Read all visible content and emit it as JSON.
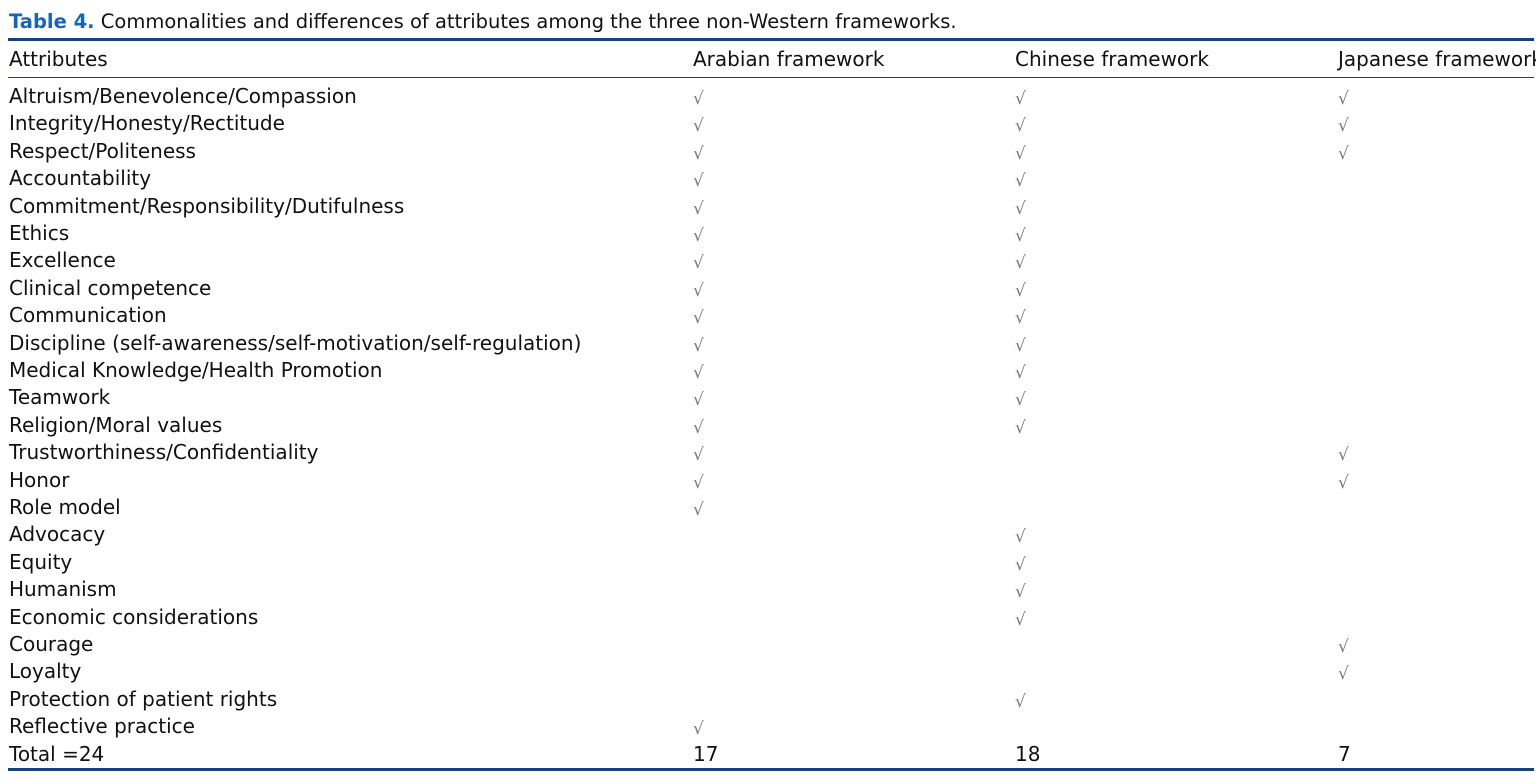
{
  "caption": {
    "label": "Table 4.",
    "text": "Commonalities and differences of attributes among the three non-Western frameworks."
  },
  "check_mark": "√",
  "headers": [
    "Attributes",
    "Arabian framework",
    "Chinese framework",
    "Japanese framework"
  ],
  "rows": [
    {
      "attribute": "Altruism/Benevolence/Compassion",
      "arabian": true,
      "chinese": true,
      "japanese": true
    },
    {
      "attribute": "Integrity/Honesty/Rectitude",
      "arabian": true,
      "chinese": true,
      "japanese": true
    },
    {
      "attribute": "Respect/Politeness",
      "arabian": true,
      "chinese": true,
      "japanese": true
    },
    {
      "attribute": "Accountability",
      "arabian": true,
      "chinese": true,
      "japanese": false
    },
    {
      "attribute": "Commitment/Responsibility/Dutifulness",
      "arabian": true,
      "chinese": true,
      "japanese": false
    },
    {
      "attribute": "Ethics",
      "arabian": true,
      "chinese": true,
      "japanese": false
    },
    {
      "attribute": "Excellence",
      "arabian": true,
      "chinese": true,
      "japanese": false
    },
    {
      "attribute": "Clinical competence",
      "arabian": true,
      "chinese": true,
      "japanese": false
    },
    {
      "attribute": "Communication",
      "arabian": true,
      "chinese": true,
      "japanese": false
    },
    {
      "attribute": "Discipline (self-awareness/self-motivation/self-regulation)",
      "arabian": true,
      "chinese": true,
      "japanese": false
    },
    {
      "attribute": "Medical Knowledge/Health Promotion",
      "arabian": true,
      "chinese": true,
      "japanese": false
    },
    {
      "attribute": "Teamwork",
      "arabian": true,
      "chinese": true,
      "japanese": false
    },
    {
      "attribute": "Religion/Moral values",
      "arabian": true,
      "chinese": true,
      "japanese": false
    },
    {
      "attribute": "Trustworthiness/Confidentiality",
      "arabian": true,
      "chinese": false,
      "japanese": true
    },
    {
      "attribute": "Honor",
      "arabian": true,
      "chinese": false,
      "japanese": true
    },
    {
      "attribute": "Role model",
      "arabian": true,
      "chinese": false,
      "japanese": false
    },
    {
      "attribute": "Advocacy",
      "arabian": false,
      "chinese": true,
      "japanese": false
    },
    {
      "attribute": "Equity",
      "arabian": false,
      "chinese": true,
      "japanese": false
    },
    {
      "attribute": "Humanism",
      "arabian": false,
      "chinese": true,
      "japanese": false
    },
    {
      "attribute": "Economic considerations",
      "arabian": false,
      "chinese": true,
      "japanese": false
    },
    {
      "attribute": "Courage",
      "arabian": false,
      "chinese": false,
      "japanese": true
    },
    {
      "attribute": "Loyalty",
      "arabian": false,
      "chinese": false,
      "japanese": true
    },
    {
      "attribute": "Protection of patient rights",
      "arabian": false,
      "chinese": true,
      "japanese": false
    },
    {
      "attribute": "Reflective practice",
      "arabian": true,
      "chinese": false,
      "japanese": false
    }
  ],
  "total": {
    "label": "Total =24",
    "arabian": "17",
    "chinese": "18",
    "japanese": "7"
  },
  "colors": {
    "caption_label": "#1565b8",
    "rules": "#17407c",
    "check_mark": "#7a7a7a"
  }
}
